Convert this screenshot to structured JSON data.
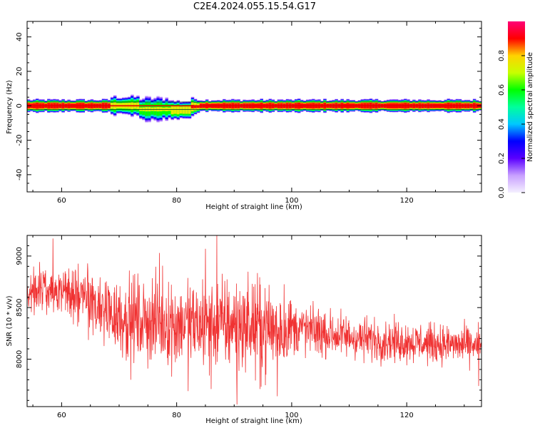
{
  "figure_title": "C2E4.2024.055.15.54.G17",
  "colors": {
    "snr_line": "#f03232",
    "axis": "#000000",
    "colormap": [
      "#f5f0ff",
      "#c8a0ff",
      "#5a00ff",
      "#0000ff",
      "#00c8ff",
      "#00ff9c",
      "#00ff00",
      "#c8ff00",
      "#ffd200",
      "#ff0000",
      "#ff0078"
    ]
  },
  "chart_data": [
    {
      "type": "heatmap",
      "xlabel": "Height of straight line (km)",
      "ylabel": "Frequency (Hz)",
      "xlim": [
        54,
        133
      ],
      "ylim": [
        -50,
        49
      ],
      "xticks": [
        60,
        80,
        100,
        120
      ],
      "yticks": [
        -40,
        -20,
        0,
        20,
        40
      ],
      "colorbar": {
        "label": "Normalized spectral amplitude",
        "range": [
          0,
          1
        ],
        "ticks": [
          "0.0",
          "0.2",
          "0.4",
          "0.6",
          "0.8"
        ]
      },
      "ridge": [
        {
          "x0": 54,
          "x1": 68.5,
          "center": 0,
          "halfwidth": 2.5,
          "core": 0.95
        },
        {
          "x0": 68.5,
          "x1": 73.5,
          "center": 0,
          "halfwidth": 4,
          "core": 0.75
        },
        {
          "x0": 73.5,
          "x1": 79,
          "center": -2,
          "halfwidth": 5,
          "core": 0.7
        },
        {
          "x0": 79,
          "x1": 82.5,
          "center": -2.5,
          "halfwidth": 4,
          "core": 0.8
        },
        {
          "x0": 82.5,
          "x1": 84,
          "center": -0.5,
          "halfwidth": 3.5,
          "core": 0.85
        },
        {
          "x0": 84,
          "x1": 133,
          "center": 0,
          "halfwidth": 2.5,
          "core": 0.95
        }
      ]
    },
    {
      "type": "line",
      "xlabel": "Height of straight line (km)",
      "ylabel": "SNR (10 * v/v)",
      "xlim": [
        54,
        133
      ],
      "ylim": [
        7540,
        9200
      ],
      "xticks": [
        60,
        80,
        100,
        120
      ],
      "yticks": [
        8000,
        8500,
        9000
      ],
      "series": [
        {
          "trend": [
            [
              54,
              8640
            ],
            [
              56,
              8700
            ],
            [
              60,
              8660
            ],
            [
              64,
              8590
            ],
            [
              68,
              8450
            ],
            [
              72,
              8390
            ],
            [
              76,
              8370
            ],
            [
              80,
              8340
            ],
            [
              84,
              8330
            ],
            [
              88,
              8340
            ],
            [
              92,
              8330
            ],
            [
              96,
              8300
            ],
            [
              100,
              8310
            ],
            [
              102,
              8290
            ],
            [
              104,
              8270
            ],
            [
              108,
              8230
            ],
            [
              112,
              8200
            ],
            [
              116,
              8180
            ],
            [
              120,
              8170
            ],
            [
              124,
              8150
            ],
            [
              128,
              8140
            ],
            [
              133,
              8130
            ]
          ],
          "spread": [
            [
              54,
              120
            ],
            [
              60,
              130
            ],
            [
              68,
              230
            ],
            [
              80,
              260
            ],
            [
              90,
              280
            ],
            [
              99,
              260
            ],
            [
              100,
              160
            ],
            [
              110,
              130
            ],
            [
              120,
              120
            ],
            [
              133,
              110
            ]
          ],
          "peaks": [
            [
              58.5,
              9170
            ],
            [
              87,
              9200
            ],
            [
              85,
              9070
            ],
            [
              77,
              9030
            ],
            [
              97.5,
              8930
            ],
            [
              72,
              8950
            ]
          ],
          "dips": [
            [
              90.5,
              7560
            ],
            [
              97.5,
              7640
            ],
            [
              82,
              7690
            ],
            [
              86,
              7710
            ],
            [
              72,
              7800
            ],
            [
              132.5,
              7740
            ],
            [
              94.5,
              7710
            ]
          ]
        }
      ]
    }
  ]
}
